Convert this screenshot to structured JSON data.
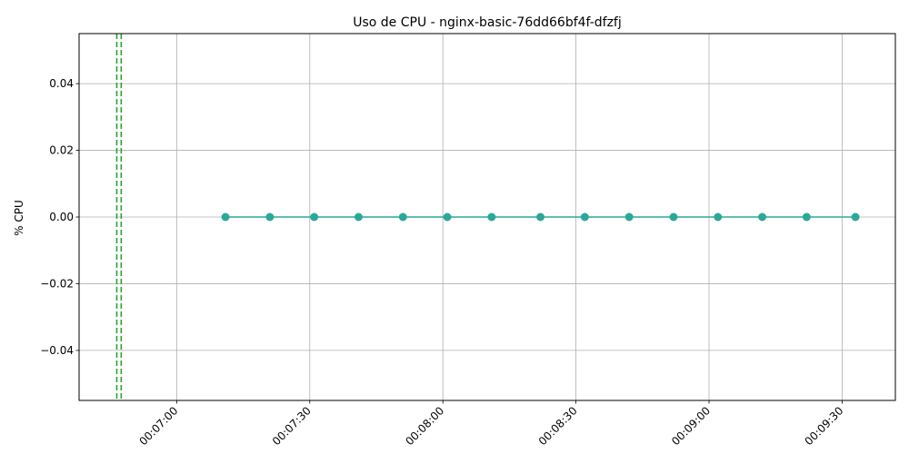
{
  "chart_data": {
    "type": "line",
    "title": "Uso de CPU - nginx-basic-76dd66bf4f-dfzfj",
    "xlabel": "",
    "ylabel": "% CPU",
    "x_format": "time",
    "x_ticks": [
      "00:07:00",
      "00:07:30",
      "00:08:00",
      "00:08:30",
      "00:09:00",
      "00:09:30"
    ],
    "y_ticks": [
      "−0.04",
      "−0.02",
      "0.00",
      "0.02",
      "0.04"
    ],
    "xlim": [
      "00:06:38",
      "00:09:42"
    ],
    "ylim": [
      -0.055,
      0.055
    ],
    "grid": true,
    "series": [
      {
        "color": "#2ca89a",
        "marker": "circle",
        "x": [
          "00:07:11",
          "00:07:21",
          "00:07:31",
          "00:07:41",
          "00:07:51",
          "00:08:01",
          "00:08:11",
          "00:08:22",
          "00:08:32",
          "00:08:42",
          "00:08:52",
          "00:09:02",
          "00:09:12",
          "00:09:22",
          "00:09:33"
        ],
        "y": [
          0,
          0,
          0,
          0,
          0,
          0,
          0,
          0,
          0,
          0,
          0,
          0,
          0,
          0,
          0
        ]
      }
    ],
    "vlines": [
      {
        "x": "00:06:46.5",
        "color": "#2ca02c",
        "style": "dashed"
      },
      {
        "x": "00:06:47.5",
        "color": "#2ca02c",
        "style": "dashed"
      }
    ]
  }
}
